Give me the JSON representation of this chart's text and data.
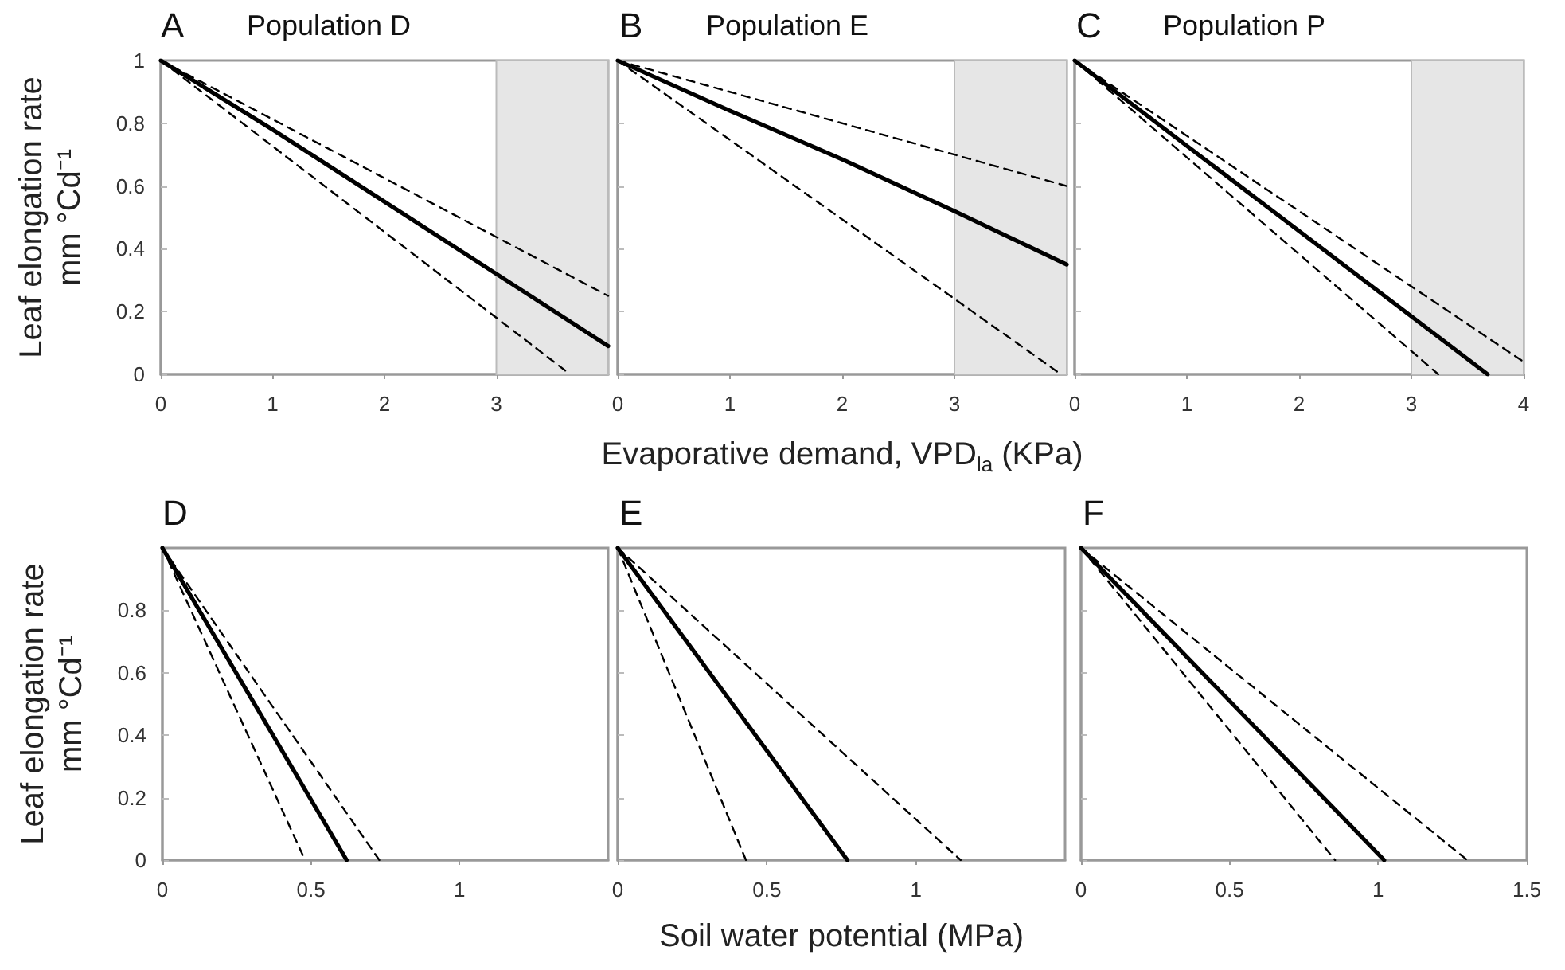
{
  "chart_data": [
    {
      "type": "line",
      "title": "Population D",
      "annotations": [
        "A"
      ],
      "ylabel": "Leaf elongation rate\nmm °Cd⁻¹",
      "xlim": [
        0,
        4
      ],
      "xticks": [
        0,
        1,
        2,
        3
      ],
      "ylim": [
        0,
        1
      ],
      "yticks": [
        0,
        0.2,
        0.4,
        0.6,
        0.8,
        1
      ],
      "bands": [
        {
          "axis": "x",
          "from": 3,
          "to": 4,
          "color": "#e6e6e6"
        }
      ],
      "series": [
        {
          "color": "#000000",
          "line_style": "dashed",
          "x": [
            0,
            3.66
          ],
          "values": [
            1,
            0
          ]
        },
        {
          "color": "#000000",
          "line_style": "solid",
          "x": [
            0,
            1,
            2,
            3,
            4
          ],
          "values": [
            1,
            0.78,
            0.55,
            0.32,
            0.09
          ]
        },
        {
          "color": "#000000",
          "line_style": "dashed",
          "x": [
            0,
            4
          ],
          "values": [
            1,
            0.25
          ]
        }
      ]
    },
    {
      "type": "line",
      "title": "Population E",
      "annotations": [
        "B"
      ],
      "xlabel": "Evaporative demand, VPD$_{la}$ (KPa)",
      "xlim": [
        0,
        4
      ],
      "xticks": [
        0,
        1,
        2,
        3
      ],
      "ylim": [
        0,
        1
      ],
      "yticks": [
        0,
        0.2,
        0.4,
        0.6,
        0.8,
        1
      ],
      "tick_labels": "x",
      "bands": [
        {
          "axis": "x",
          "from": 3,
          "to": 4,
          "color": "#e6e6e6"
        }
      ],
      "series": [
        {
          "color": "#000000",
          "line_style": "dashed",
          "x": [
            0,
            3.95
          ],
          "values": [
            1,
            0
          ]
        },
        {
          "color": "#000000",
          "line_style": "solid",
          "x": [
            0,
            1,
            2,
            3,
            4
          ],
          "values": [
            1,
            0.84,
            0.685,
            0.52,
            0.35
          ]
        },
        {
          "color": "#000000",
          "line_style": "dashed",
          "x": [
            0,
            4
          ],
          "values": [
            1,
            0.6
          ]
        }
      ]
    },
    {
      "type": "line",
      "title": "Population P",
      "annotations": [
        "C"
      ],
      "xlim": [
        0,
        4
      ],
      "xticks": [
        0,
        1,
        2,
        3,
        4
      ],
      "ylim": [
        0,
        1
      ],
      "yticks": [
        0,
        0.2,
        0.4,
        0.6,
        0.8,
        1
      ],
      "tick_labels": "x",
      "bands": [
        {
          "axis": "x",
          "from": 3,
          "to": 4,
          "color": "#e6e6e6"
        }
      ],
      "series": [
        {
          "color": "#000000",
          "line_style": "dashed",
          "x": [
            0,
            3.24
          ],
          "values": [
            1,
            0
          ]
        },
        {
          "color": "#000000",
          "line_style": "solid",
          "x": [
            0,
            3.68
          ],
          "values": [
            1,
            0
          ]
        },
        {
          "color": "#000000",
          "line_style": "dashed",
          "x": [
            0,
            4
          ],
          "values": [
            1,
            0.04
          ]
        }
      ]
    },
    {
      "type": "line",
      "annotations": [
        "D"
      ],
      "ylabel": "Leaf elongation rate\nmm °Cd⁻¹",
      "xlim": [
        0,
        1.5
      ],
      "xticks": [
        0,
        0.5,
        1
      ],
      "ylim": [
        0,
        1
      ],
      "yticks": [
        0,
        0.2,
        0.4,
        0.6,
        0.8
      ],
      "series": [
        {
          "color": "#000000",
          "line_style": "dashed",
          "x": [
            0,
            0.48
          ],
          "values": [
            1,
            0
          ]
        },
        {
          "color": "#000000",
          "line_style": "solid",
          "x": [
            0,
            0.62
          ],
          "values": [
            1,
            0
          ]
        },
        {
          "color": "#000000",
          "line_style": "dashed",
          "x": [
            0,
            0.73
          ],
          "values": [
            1,
            0
          ]
        }
      ]
    },
    {
      "type": "line",
      "annotations": [
        "E"
      ],
      "xlabel": "Soil water potential (MPa)",
      "xlim": [
        0,
        1.5
      ],
      "xticks": [
        0,
        0.5,
        1
      ],
      "ylim": [
        0,
        1
      ],
      "yticks": [
        0,
        0.2,
        0.4,
        0.6,
        0.8
      ],
      "tick_labels": "x",
      "series": [
        {
          "color": "#000000",
          "line_style": "dashed",
          "x": [
            0,
            0.43
          ],
          "values": [
            1,
            0
          ]
        },
        {
          "color": "#000000",
          "line_style": "solid",
          "x": [
            0,
            0.77
          ],
          "values": [
            1,
            0
          ]
        },
        {
          "color": "#000000",
          "line_style": "dashed",
          "x": [
            0,
            1.15
          ],
          "values": [
            1,
            0
          ]
        }
      ]
    },
    {
      "type": "line",
      "annotations": [
        "F"
      ],
      "xlim": [
        0,
        1.5
      ],
      "xticks": [
        0,
        0.5,
        1,
        1.5
      ],
      "ylim": [
        0,
        1
      ],
      "yticks": [
        0,
        0.2,
        0.4,
        0.6,
        0.8
      ],
      "tick_labels": "x",
      "series": [
        {
          "color": "#000000",
          "line_style": "dashed",
          "x": [
            0,
            0.855
          ],
          "values": [
            1,
            0
          ]
        },
        {
          "color": "#000000",
          "line_style": "solid",
          "x": [
            0,
            1.02
          ],
          "values": [
            1,
            0
          ]
        },
        {
          "color": "#000000",
          "line_style": "dashed",
          "x": [
            0,
            1.3
          ],
          "values": [
            1,
            0
          ]
        }
      ]
    }
  ]
}
